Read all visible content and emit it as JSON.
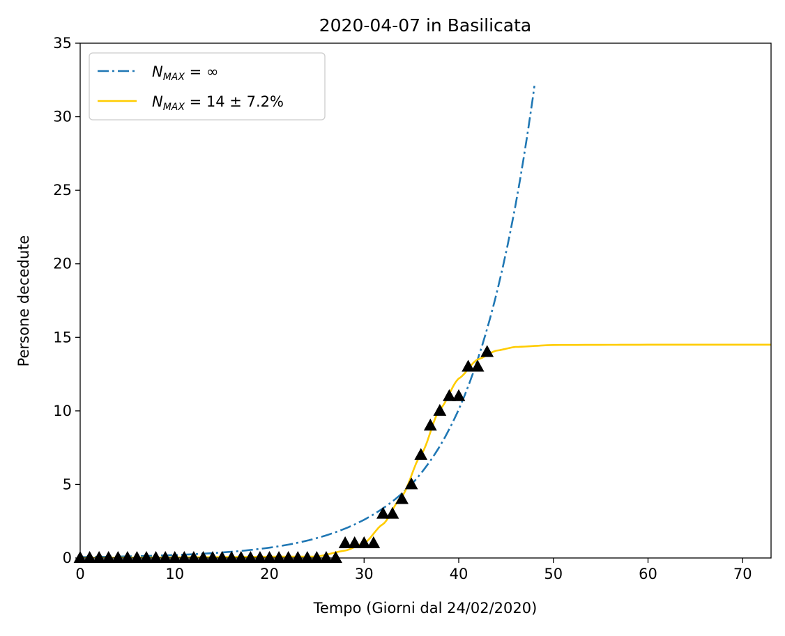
{
  "chart_data": {
    "type": "line",
    "title": "2020-04-07 in Basilicata",
    "xlabel": "Tempo (Giorni dal 24/02/2020)",
    "ylabel": "Persone decedute",
    "xlim": [
      0,
      73
    ],
    "ylim": [
      0,
      35
    ],
    "xticks": [
      0,
      10,
      20,
      30,
      40,
      50,
      60,
      70
    ],
    "yticks": [
      0,
      5,
      10,
      15,
      20,
      25,
      30,
      35
    ],
    "grid": false,
    "legend_position": "top-left",
    "legend": [
      {
        "symbol": "N",
        "subscript": "MAX",
        "rest": " = ∞",
        "style": "dashdot",
        "color": "#1f77b4"
      },
      {
        "symbol": "N",
        "subscript": "MAX",
        "rest": " = 14 ± 7.2%",
        "style": "solid",
        "color": "#ffcc00"
      }
    ],
    "series": [
      {
        "style": "dashdot",
        "color": "#1f77b4",
        "model": "exponential",
        "x": [
          0,
          10,
          20,
          25,
          30,
          35,
          38,
          40,
          42,
          44,
          46,
          48
        ],
        "y": [
          0.06,
          0.2,
          0.7,
          1.35,
          2.6,
          5.0,
          7.6,
          10.1,
          13.5,
          18.0,
          24.0,
          32.1
        ]
      },
      {
        "style": "solid",
        "color": "#ffcc00",
        "model": "logistic",
        "x": [
          0,
          25,
          28,
          30,
          32,
          34,
          36,
          38,
          40,
          42,
          44,
          46,
          50,
          60,
          73
        ],
        "y": [
          0,
          0.1,
          0.5,
          1.0,
          2.3,
          4.2,
          7.0,
          10.1,
          12.2,
          13.5,
          14.1,
          14.35,
          14.48,
          14.5,
          14.5
        ]
      },
      {
        "style": "markers",
        "marker": "triangle",
        "color": "#000000",
        "x": [
          0,
          1,
          2,
          3,
          4,
          5,
          6,
          7,
          8,
          9,
          10,
          11,
          12,
          13,
          14,
          15,
          16,
          17,
          18,
          19,
          20,
          21,
          22,
          23,
          24,
          25,
          26,
          27,
          28,
          29,
          30,
          31,
          32,
          33,
          34,
          35,
          36,
          37,
          38,
          39,
          40,
          41,
          42,
          43
        ],
        "y": [
          0,
          0,
          0,
          0,
          0,
          0,
          0,
          0,
          0,
          0,
          0,
          0,
          0,
          0,
          0,
          0,
          0,
          0,
          0,
          0,
          0,
          0,
          0,
          0,
          0,
          0,
          0,
          0,
          1,
          1,
          1,
          1,
          3,
          3,
          4,
          5,
          7,
          9,
          10,
          11,
          11,
          13,
          13,
          14
        ]
      }
    ]
  }
}
